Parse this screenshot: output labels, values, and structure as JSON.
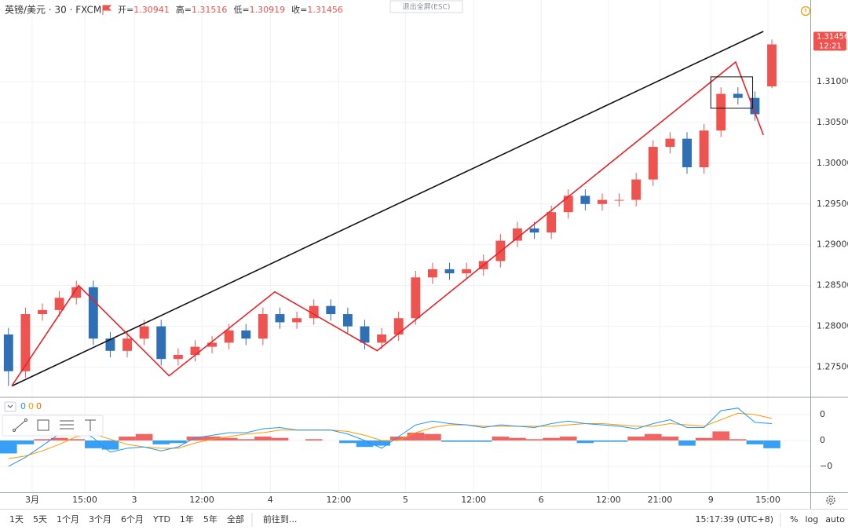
{
  "chart_data": {
    "type": "candlestick",
    "header": {
      "symbol": "英镑/美元 · 30 · FXCM",
      "ohlc_labels": [
        "开=",
        "高=",
        "低=",
        "收="
      ]
    },
    "fullscreen_exit": "退出全屏(ESC)",
    "countdown": "12:21",
    "colors": {
      "up": "#ef5350",
      "down": "#2e6fb5",
      "trendline": "#111111",
      "zigzag": "#e8232a",
      "rectangle": "#111111"
    },
    "x": [
      1.5,
      4.5,
      7.5,
      10.5,
      13.5,
      16.5,
      19.5,
      22.5,
      25.5,
      28.5,
      31.5,
      34.5,
      37.5,
      40.5,
      43.5,
      46.5,
      49.5,
      52.5,
      55.5,
      58.5,
      61.5,
      64.5,
      67.5,
      70.5,
      73.5,
      76.5,
      79.5,
      82.5,
      85.5,
      88.5,
      91.5,
      94.5,
      97.5,
      100.5,
      103.5,
      106.5,
      109.5,
      112.5,
      115.5,
      118.5,
      121.5,
      124.5,
      127.5,
      130.5,
      133.5,
      136.5
    ],
    "candles": {
      "open": [
        1.279,
        1.2745,
        1.2815,
        1.282,
        1.2835,
        1.2848,
        1.2785,
        1.277,
        1.2785,
        1.28,
        1.276,
        1.2765,
        1.2775,
        1.278,
        1.2795,
        1.2785,
        1.2815,
        1.2805,
        1.281,
        1.2825,
        1.2815,
        1.28,
        1.278,
        1.279,
        1.281,
        1.286,
        1.287,
        1.2865,
        1.287,
        1.288,
        1.2905,
        1.292,
        1.2915,
        1.294,
        1.296,
        1.295,
        1.2955,
        1.2955,
        1.298,
        1.302,
        1.303,
        1.2995,
        1.304,
        1.3085,
        1.308,
        1.30941
      ],
      "high": [
        1.2798,
        1.2823,
        1.2828,
        1.2843,
        1.2856,
        1.2856,
        1.2793,
        1.2793,
        1.2808,
        1.2808,
        1.2773,
        1.2783,
        1.2788,
        1.2803,
        1.2803,
        1.2823,
        1.2823,
        1.2818,
        1.2833,
        1.2833,
        1.2823,
        1.2808,
        1.2798,
        1.2818,
        1.2868,
        1.2878,
        1.2878,
        1.2878,
        1.2888,
        1.2913,
        1.2928,
        1.2928,
        1.2948,
        1.2968,
        1.2968,
        1.2963,
        1.2963,
        1.2988,
        1.3028,
        1.3038,
        1.3038,
        1.3048,
        1.3093,
        1.3093,
        1.3088,
        1.31516
      ],
      "low": [
        1.2727,
        1.2737,
        1.2807,
        1.2812,
        1.2827,
        1.2777,
        1.2762,
        1.2762,
        1.2777,
        1.2752,
        1.2752,
        1.2757,
        1.2767,
        1.2772,
        1.2777,
        1.2777,
        1.2797,
        1.2797,
        1.2802,
        1.2807,
        1.2792,
        1.2772,
        1.2772,
        1.2782,
        1.2802,
        1.2852,
        1.2857,
        1.2857,
        1.2862,
        1.2872,
        1.2897,
        1.2907,
        1.2907,
        1.2932,
        1.2942,
        1.2942,
        1.2947,
        1.2947,
        1.2972,
        1.3012,
        1.2987,
        1.2987,
        1.3032,
        1.3072,
        1.3052,
        1.30919
      ],
      "close": [
        1.2745,
        1.2815,
        1.282,
        1.2835,
        1.2848,
        1.2785,
        1.277,
        1.2785,
        1.28,
        1.276,
        1.2765,
        1.2775,
        1.278,
        1.2795,
        1.2785,
        1.2815,
        1.2805,
        1.281,
        1.2825,
        1.2815,
        1.28,
        1.278,
        1.279,
        1.281,
        1.286,
        1.287,
        1.2865,
        1.287,
        1.288,
        1.2905,
        1.292,
        1.2915,
        1.294,
        1.296,
        1.295,
        1.2955,
        1.2955,
        1.298,
        1.302,
        1.303,
        1.2995,
        1.304,
        1.3085,
        1.308,
        1.306,
        1.31456
      ]
    },
    "xlim": [
      0,
      143.3
    ],
    "xticks": [
      {
        "value": 5.7,
        "label": "3月"
      },
      {
        "value": 15,
        "label": "15:00"
      },
      {
        "value": 23.75,
        "label": "3"
      },
      {
        "value": 35.7,
        "label": "12:00"
      },
      {
        "value": 47.8,
        "label": "4"
      },
      {
        "value": 59.9,
        "label": "12:00"
      },
      {
        "value": 71.7,
        "label": "5"
      },
      {
        "value": 83.75,
        "label": "12:00"
      },
      {
        "value": 95.7,
        "label": "6"
      },
      {
        "value": 107.6,
        "label": "12:00"
      },
      {
        "value": 116.7,
        "label": "21:00"
      },
      {
        "value": 125.7,
        "label": "9"
      },
      {
        "value": 135.8,
        "label": "15:00"
      }
    ],
    "ylim": [
      1.2714,
      1.32
    ],
    "yticks": [
      {
        "value": 1.275,
        "label": "1.27500"
      },
      {
        "value": 1.28,
        "label": "1.28000"
      },
      {
        "value": 1.285,
        "label": "1.28500"
      },
      {
        "value": 1.29,
        "label": "1.29000"
      },
      {
        "value": 1.295,
        "label": "1.29500"
      },
      {
        "value": 1.3,
        "label": "1.30000"
      },
      {
        "value": 1.305,
        "label": "1.30500"
      },
      {
        "value": 1.31,
        "label": "1.31000"
      }
    ],
    "grid": true,
    "drawings": {
      "trendline": {
        "x": [
          2.08,
          135
        ],
        "y": [
          1.27269,
          1.31615
        ]
      },
      "zigzag": {
        "x": [
          2.08,
          13.9,
          29.9,
          48.6,
          66.7,
          130.1,
          135
        ],
        "y": [
          1.27269,
          1.285,
          1.27394,
          1.28423,
          1.27702,
          1.3124,
          1.30346
        ]
      },
      "rectangle": {
        "x": [
          125.7,
          133.1
        ],
        "y": [
          1.30673,
          1.31058
        ]
      }
    },
    "macd": {
      "legend_values": [
        0,
        0,
        0
      ],
      "legend_colors": [
        "#2196f3",
        "#ff9800",
        "#ef6c00"
      ],
      "ylim": [
        -0.004,
        0.00327
      ],
      "yticks": [
        {
          "value": 0.002,
          "label": "0"
        },
        {
          "value": 0,
          "label": "0"
        },
        {
          "value": -0.002,
          "label": "−0"
        }
      ],
      "histogram": [
        -0.001,
        -0.0003,
        0.0001,
        0.0002,
        0.0001,
        -0.0006,
        -0.0007,
        0.0003,
        0.0005,
        -0.0003,
        -0.0002,
        0.0003,
        0.0003,
        0.0002,
        0.0001,
        0.0003,
        0.0002,
        0,
        0.0001,
        0,
        -0.0002,
        -0.0005,
        -0.0004,
        0.0003,
        0.0006,
        0.0005,
        -0.0001,
        -0.0001,
        -0.0001,
        0.0003,
        0.0002,
        0.0001,
        0.0002,
        0.0003,
        -0.0002,
        -0.0001,
        -0.0001,
        0.0003,
        0.0005,
        0.0003,
        -0.0004,
        0.0002,
        0.0007,
        0.0001,
        -0.0003,
        -0.0006
      ],
      "macd": [
        -0.002,
        -0.0013,
        -0.0004,
        0.0005,
        0.0009,
        0.0002,
        -0.0009,
        -0.0006,
        -0.0005,
        -0.0008,
        -0.0005,
        0.0002,
        0.0004,
        0.0006,
        0.0006,
        0.0009,
        0.001,
        0.0008,
        0.0008,
        0.0008,
        0.0005,
        0,
        -0.0006,
        0.0003,
        0.0012,
        0.0015,
        0.0013,
        0.0012,
        0.001,
        0.0012,
        0.0011,
        0.001,
        0.0013,
        0.0015,
        0.0013,
        0.0012,
        0.0011,
        0.0009,
        0.0013,
        0.0016,
        0.001,
        0.001,
        0.0023,
        0.0025,
        0.0014,
        0.0013
      ],
      "signal": [
        -0.0014,
        -0.0012,
        -0.0008,
        -0.0003,
        0.0003,
        0.0005,
        0.0001,
        -0.0003,
        -0.0005,
        -0.0006,
        -0.0006,
        -0.0002,
        0.0001,
        0.0003,
        0.0005,
        0.0006,
        0.0008,
        0.0008,
        0.0008,
        0.0008,
        0.0007,
        0.0004,
        0,
        0,
        0.0006,
        0.001,
        0.0012,
        0.0012,
        0.0011,
        0.0011,
        0.0011,
        0.0011,
        0.0011,
        0.0012,
        0.0013,
        0.0013,
        0.0012,
        0.0011,
        0.0011,
        0.0013,
        0.0012,
        0.0011,
        0.0016,
        0.0021,
        0.002,
        0.0017
      ],
      "up_color": "#ef5350",
      "down_color": "#2196f3",
      "macd_color": "#2196f3",
      "signal_color": "#ff9800"
    },
    "toolbar": {
      "ranges": [
        "1天",
        "5天",
        "1个月",
        "3个月",
        "6个月",
        "YTD",
        "1年",
        "5年",
        "全部"
      ],
      "goto": "前往到...",
      "clock": "15:17:39 (UTC+8)",
      "options": [
        "%",
        "log",
        "auto"
      ]
    }
  }
}
